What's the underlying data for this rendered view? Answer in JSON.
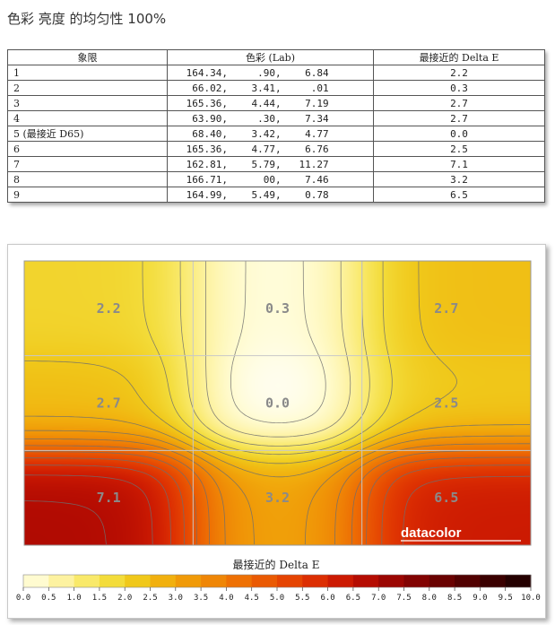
{
  "title": "色彩 亮度 的均匀性 100%",
  "table": {
    "headers": [
      "象限",
      "色彩 (Lab)",
      "最接近的 Delta E"
    ],
    "rows": [
      {
        "q": "1",
        "lab": " 164.34,     .90,    6.84",
        "de": "2.2"
      },
      {
        "q": "2",
        "lab": "  66.02,    3.41,     .01",
        "de": "0.3"
      },
      {
        "q": "3",
        "lab": " 165.36,    4.44,    7.19",
        "de": "2.7"
      },
      {
        "q": "4",
        "lab": "  63.90,     .30,    7.34",
        "de": "2.7"
      },
      {
        "q": "5 (最接近 D65)",
        "lab": "  68.40,    3.42,    4.77",
        "de": "0.0"
      },
      {
        "q": "6",
        "lab": " 165.36,    4.77,    6.76",
        "de": "2.5"
      },
      {
        "q": "7",
        "lab": " 162.81,    5.79,   11.27",
        "de": "7.1"
      },
      {
        "q": "8",
        "lab": " 166.71,      00,    7.46",
        "de": "3.2"
      },
      {
        "q": "9",
        "lab": " 164.99,    5.49,    0.78",
        "de": "6.5"
      }
    ]
  },
  "chart_data": {
    "type": "heatmap",
    "grid_rows": 3,
    "grid_cols": 3,
    "values": [
      [
        2.2,
        0.3,
        2.7
      ],
      [
        2.7,
        0.0,
        2.5
      ],
      [
        7.1,
        3.2,
        6.5
      ]
    ],
    "value_labels": [
      "2.2",
      "0.3",
      "2.7",
      "2.7",
      "0.0",
      "2.5",
      "7.1",
      "3.2",
      "6.5"
    ],
    "colorbar_title": "最接近的 Delta E",
    "colorbar_range": [
      0,
      10
    ],
    "colorbar_ticks": [
      "0.0",
      "0.5",
      "1.0",
      "1.5",
      "2.0",
      "2.5",
      "3.0",
      "3.5",
      "4.0",
      "4.5",
      "5.0",
      "5.5",
      "6.0",
      "6.5",
      "7.0",
      "7.5",
      "8.0",
      "8.5",
      "9.0",
      "9.5",
      "10.0"
    ],
    "colorbar_colors": [
      "#ffffff",
      "#fffbd0",
      "#fdf2a0",
      "#f9e96a",
      "#f3dc3a",
      "#f0c81a",
      "#f1b00e",
      "#f09a08",
      "#ef8606",
      "#ee7004",
      "#ea5a03",
      "#e54402",
      "#dc2e02",
      "#cc1a02",
      "#b50c02",
      "#9b0602",
      "#820302",
      "#6a0201",
      "#520101",
      "#3a0000",
      "#240000"
    ],
    "watermark": "datacolor"
  }
}
